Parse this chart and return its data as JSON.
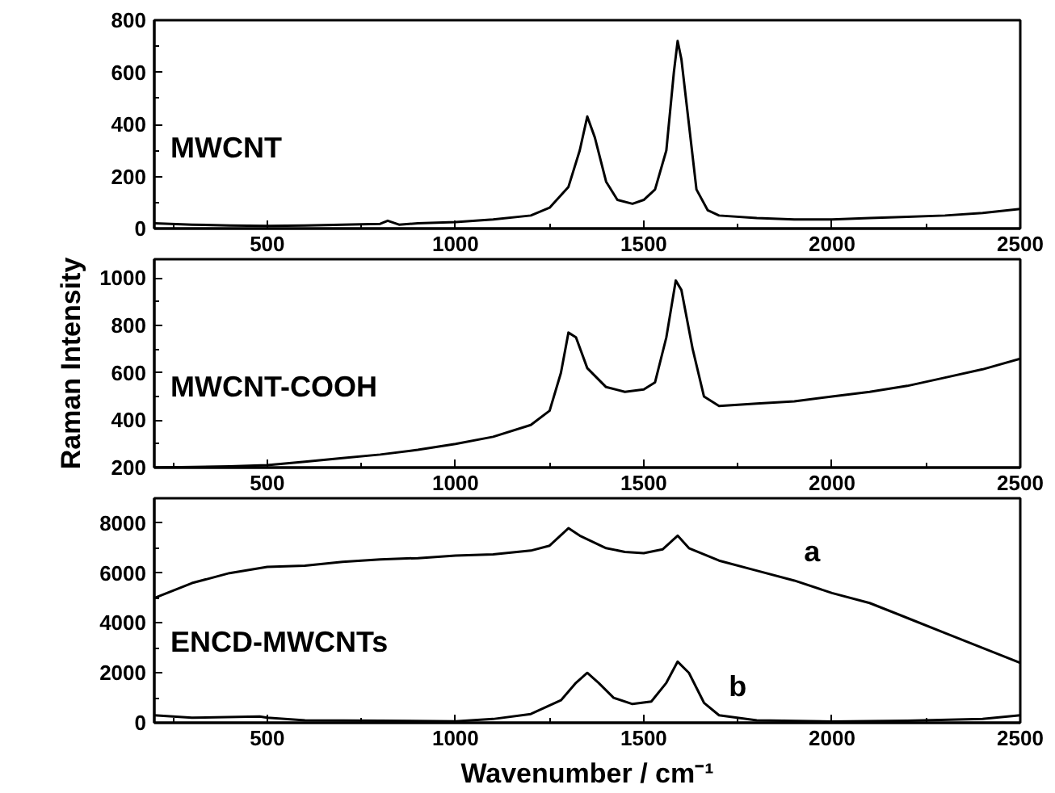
{
  "chart_data": [
    {
      "type": "line",
      "annotations": [
        "MWCNT"
      ],
      "xlim": [
        200,
        2500
      ],
      "xticks": [
        500,
        1000,
        1500,
        2000,
        2500
      ],
      "ylim": [
        0,
        800
      ],
      "yticks": [
        0,
        200,
        400,
        600,
        800
      ],
      "grid": false,
      "series": [
        {
          "color": "#000000",
          "x": [
            200,
            300,
            400,
            500,
            600,
            700,
            800,
            820,
            850,
            900,
            1000,
            1100,
            1200,
            1250,
            1300,
            1330,
            1350,
            1370,
            1400,
            1430,
            1470,
            1500,
            1530,
            1560,
            1580,
            1590,
            1600,
            1620,
            1640,
            1670,
            1700,
            1800,
            1900,
            2000,
            2100,
            2200,
            2300,
            2400,
            2500
          ],
          "values": [
            20,
            15,
            12,
            10,
            12,
            15,
            18,
            30,
            15,
            20,
            25,
            35,
            50,
            80,
            160,
            300,
            430,
            350,
            180,
            110,
            95,
            110,
            150,
            300,
            600,
            720,
            650,
            400,
            150,
            70,
            50,
            40,
            35,
            35,
            40,
            45,
            50,
            60,
            75
          ]
        }
      ]
    },
    {
      "type": "line",
      "annotations": [
        "MWCNT-COOH"
      ],
      "ylabel": "Raman Intensity",
      "xlim": [
        200,
        2500
      ],
      "xticks": [
        500,
        1000,
        1500,
        2000,
        2500
      ],
      "ylim": [
        200,
        1080
      ],
      "yticks": [
        200,
        400,
        600,
        800,
        1000
      ],
      "grid": false,
      "series": [
        {
          "color": "#000000",
          "x": [
            200,
            400,
            500,
            600,
            700,
            800,
            900,
            1000,
            1100,
            1200,
            1250,
            1280,
            1300,
            1320,
            1350,
            1400,
            1450,
            1500,
            1530,
            1560,
            1585,
            1600,
            1630,
            1660,
            1700,
            1800,
            1900,
            2000,
            2100,
            2200,
            2300,
            2400,
            2500
          ],
          "values": [
            200,
            205,
            210,
            225,
            240,
            255,
            275,
            300,
            330,
            380,
            440,
            600,
            770,
            750,
            620,
            540,
            520,
            530,
            560,
            750,
            990,
            950,
            700,
            500,
            460,
            470,
            480,
            500,
            520,
            545,
            580,
            615,
            660
          ]
        }
      ]
    },
    {
      "type": "line",
      "annotations": [
        "ENCD-MWCNTs"
      ],
      "xlabel": "Wavenumber / cm⁻¹",
      "xlim": [
        200,
        2500
      ],
      "xticks": [
        500,
        1000,
        1500,
        2000,
        2500
      ],
      "ylim": [
        0,
        9000
      ],
      "yticks": [
        0,
        2000,
        4000,
        6000,
        8000
      ],
      "grid": false,
      "series": [
        {
          "name": "a",
          "color": "#000000",
          "x": [
            200,
            300,
            400,
            500,
            600,
            700,
            800,
            900,
            1000,
            1100,
            1200,
            1250,
            1300,
            1330,
            1400,
            1450,
            1500,
            1550,
            1590,
            1620,
            1700,
            1800,
            1900,
            2000,
            2100,
            2200,
            2300,
            2400,
            2500
          ],
          "values": [
            5000,
            5600,
            6000,
            6250,
            6300,
            6450,
            6550,
            6600,
            6700,
            6750,
            6900,
            7100,
            7800,
            7500,
            7000,
            6850,
            6800,
            6950,
            7500,
            7000,
            6500,
            6100,
            5700,
            5200,
            4800,
            4200,
            3600,
            3000,
            2400
          ]
        },
        {
          "name": "b",
          "color": "#000000",
          "x": [
            200,
            300,
            480,
            500,
            600,
            800,
            1000,
            1100,
            1200,
            1280,
            1320,
            1350,
            1380,
            1420,
            1470,
            1520,
            1560,
            1590,
            1620,
            1660,
            1700,
            1800,
            2000,
            2200,
            2400,
            2500
          ],
          "values": [
            300,
            200,
            250,
            200,
            100,
            80,
            60,
            150,
            350,
            900,
            1600,
            2000,
            1600,
            1000,
            750,
            850,
            1600,
            2450,
            2000,
            800,
            300,
            100,
            50,
            80,
            150,
            300
          ]
        }
      ]
    }
  ]
}
